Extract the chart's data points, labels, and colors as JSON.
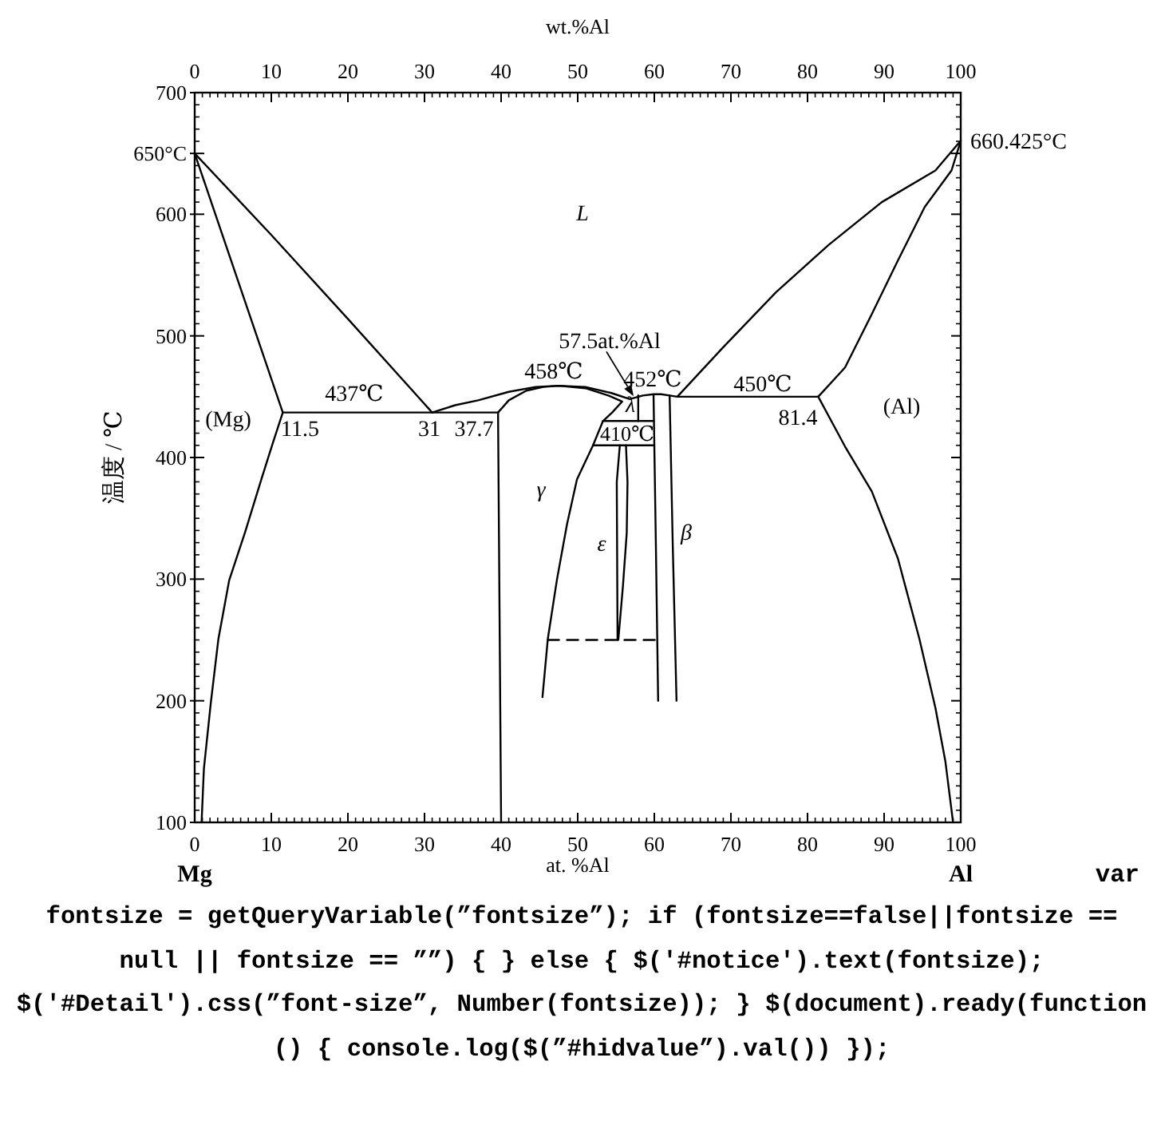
{
  "chart_data": {
    "type": "line",
    "xlabel": "at. %Al",
    "x2label": "wt.%Al",
    "ylabel": "温度 / ℃",
    "xlim": [
      0,
      100
    ],
    "xticks": [
      0,
      10,
      20,
      30,
      40,
      50,
      60,
      70,
      80,
      90,
      100
    ],
    "x2lim": [
      0,
      100
    ],
    "x2ticks": [
      0,
      10,
      20,
      30,
      40,
      50,
      60,
      70,
      80,
      90,
      100
    ],
    "ylim": [
      100,
      700
    ],
    "yticks": [
      100,
      200,
      300,
      400,
      500,
      600,
      {
        "value": 650,
        "label": "650°C"
      },
      700
    ],
    "line_style": "solid",
    "series": [
      {
        "color": "#000000",
        "x": [
          0,
          10,
          20,
          31
        ],
        "values": [
          650,
          583,
          514,
          437
        ]
      },
      {
        "color": "#000000",
        "x": [
          0,
          11.5
        ],
        "values": [
          650,
          437
        ]
      },
      {
        "color": "#000000",
        "x": [
          11.5,
          10.1,
          8.7,
          6.6,
          4.5,
          3.1,
          2.1,
          1.2,
          0.9
        ],
        "values": [
          437,
          410,
          382,
          339,
          299,
          251,
          198,
          144,
          100
        ]
      },
      {
        "color": "#000000",
        "x": [
          11.5,
          39.6
        ],
        "values": [
          437,
          437
        ]
      },
      {
        "color": "#000000",
        "x": [
          31,
          34,
          37,
          41,
          44.5,
          47.5,
          51,
          54.4,
          56.8,
          58.5,
          59.9,
          60.9,
          62,
          63,
          81.4
        ],
        "values": [
          437,
          443,
          447,
          454,
          458,
          459,
          458,
          453,
          448,
          451,
          452,
          452,
          451,
          450,
          450
        ]
      },
      {
        "color": "#000000",
        "x": [
          39.6,
          41,
          43.3,
          45.5,
          47.5,
          51,
          54,
          55.8,
          54.5,
          53.3,
          52,
          49.9,
          48.6,
          47.3,
          46.1,
          45.4
        ],
        "values": [
          437,
          447,
          455,
          458,
          459,
          457,
          451,
          446,
          437,
          430,
          410,
          382,
          345,
          300,
          251,
          203
        ]
      },
      {
        "color": "#000000",
        "x": [
          39.6,
          40.0
        ],
        "values": [
          437,
          100
        ]
      },
      {
        "color": "#000000",
        "x": [
          53.3,
          59.9
        ],
        "values": [
          430,
          430
        ]
      },
      {
        "color": "#000000",
        "x": [
          52,
          59.9
        ],
        "values": [
          410,
          410
        ]
      },
      {
        "color": "#000000",
        "x": [
          57.9,
          57.9
        ],
        "values": [
          451,
          430
        ]
      },
      {
        "color": "#000000",
        "x": [
          55.5,
          55.1,
          55.2
        ],
        "values": [
          410,
          380,
          250
        ]
      },
      {
        "color": "#000000",
        "x": [
          56.3,
          56.5,
          56.4,
          55.9,
          55.3
        ],
        "values": [
          410,
          380,
          338,
          294,
          250
        ]
      },
      {
        "color": "#000000",
        "line_style": "dashed",
        "x": [
          46.1,
          60.5
        ],
        "values": [
          250,
          250
        ]
      },
      {
        "color": "#000000",
        "x": [
          60.5,
          60.2,
          59.9
        ],
        "values": [
          200,
          330,
          451
        ]
      },
      {
        "color": "#000000",
        "x": [
          62.9,
          62.4,
          62.0
        ],
        "values": [
          200,
          330,
          451
        ]
      },
      {
        "color": "#000000",
        "x": [
          63,
          68.9,
          75.9,
          82.8,
          89.7,
          96.7,
          100
        ],
        "values": [
          450,
          490,
          536,
          575,
          610,
          636,
          660.425
        ]
      },
      {
        "color": "#000000",
        "x": [
          81.4,
          84.9,
          88.4,
          91.8,
          95.3,
          98.8,
          100
        ],
        "values": [
          450,
          474,
          518,
          562,
          606,
          636,
          660.425
        ]
      },
      {
        "color": "#000000",
        "x": [
          81.4,
          84.9,
          88.4,
          91.8,
          94.6,
          96.7,
          98.0,
          99.0
        ],
        "values": [
          450,
          409,
          372,
          317,
          251,
          194,
          150,
          100
        ]
      }
    ],
    "annotations": [
      {
        "text": "660.425°C",
        "x": 100,
        "y": 660.425
      },
      "L",
      "(Mg)",
      "11.5",
      "437℃",
      "31",
      "37.7",
      "458℃",
      {
        "text": "57.5at.%Al",
        "x": 57.5,
        "y": 449
      },
      "452℃",
      "λ",
      "410℃",
      "450℃",
      "81.4",
      "(Al)",
      "γ",
      "ε",
      "β",
      {
        "text": "Mg",
        "x": 0,
        "y": 100
      },
      {
        "text": "Al",
        "x": 100,
        "y": 100
      },
      "var",
      "fontsize = getQueryVariable(”fontsize”); if (fontsize==false||fontsize == null || fontsize == ””) { } else { $('#notice').text(fontsize); $('#Detail').css(”font-size”, Number(fontsize)); } $(document).ready(function () { console.log($(”#hidvalue”).val()) });"
    ]
  }
}
